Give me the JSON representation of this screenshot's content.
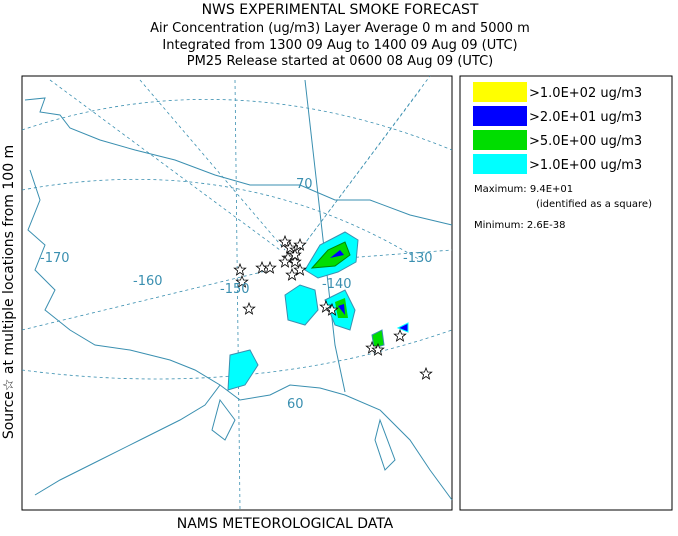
{
  "header": {
    "title": "NWS EXPERIMENTAL SMOKE FORECAST",
    "lines": [
      "Air Concentration (ug/m3) Layer Average    0 m and  5000 m",
      "Integrated from 1300 09 Aug to 1400 09 Aug 09 (UTC)",
      "PM25 Release started at 0600 08 Aug 09 (UTC)"
    ]
  },
  "side_label": "Source☆  at multiple locations    from   100 m",
  "footer": "NAMS METEOROLOGICAL DATA",
  "map": {
    "labels": [
      "-170",
      "-160",
      "-150",
      "-140",
      "-130",
      "70",
      "60"
    ]
  },
  "legend": {
    "entries": [
      {
        "label": ">1.0E+02 ug/m3",
        "color": "#ffff00"
      },
      {
        "label": ">2.0E+01 ug/m3",
        "color": "#0000ff"
      },
      {
        "label": ">5.0E+00 ug/m3",
        "color": "#00dd00"
      },
      {
        "label": ">1.0E+00 ug/m3",
        "color": "#00ffff"
      }
    ],
    "maximum": "Maximum: 9.4E+01",
    "maximum_note": "(identified as a square)",
    "minimum": "Minimum: 2.6E-38"
  }
}
